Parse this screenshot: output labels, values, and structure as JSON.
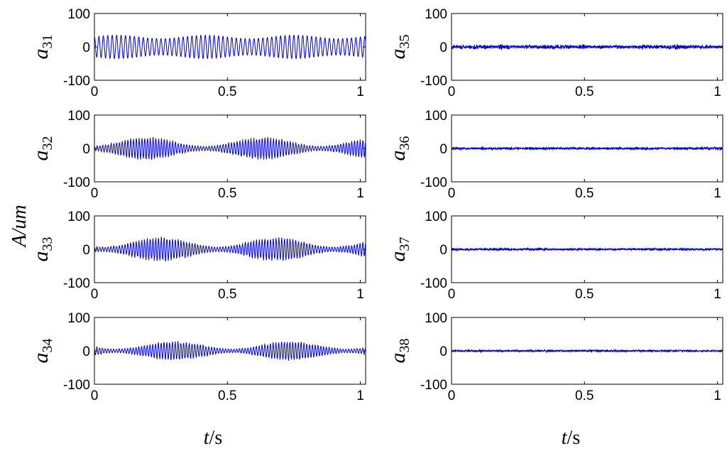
{
  "figure": {
    "ylabel_italic": "A/um",
    "xlabel_left_italic": "t",
    "xlabel_left_rest": "/s",
    "xlabel_right_italic": "t",
    "xlabel_right_rest": "/s"
  },
  "chart_data": {
    "type": "line",
    "line_color": "#0000CC",
    "x_ticks": [
      "0",
      "0.5",
      "1"
    ],
    "y_ticks": [
      "100",
      "0",
      "-100"
    ],
    "xlim": [
      0,
      1.02
    ],
    "ylim": [
      -100,
      100
    ],
    "grid": false,
    "panels": [
      {
        "label_main": "a",
        "label_sub": "31",
        "amplitude": 35,
        "cycles": 60,
        "style": "periodic"
      },
      {
        "label_main": "a",
        "label_sub": "32",
        "amplitude": 35,
        "cycles": 95,
        "style": "modulated"
      },
      {
        "label_main": "a",
        "label_sub": "33",
        "amplitude": 38,
        "cycles": 95,
        "style": "modulated"
      },
      {
        "label_main": "a",
        "label_sub": "34",
        "amplitude": 30,
        "cycles": 95,
        "style": "modulated"
      },
      {
        "label_main": "a",
        "label_sub": "35",
        "amplitude": 16,
        "cycles": 120,
        "style": "bursty"
      },
      {
        "label_main": "a",
        "label_sub": "36",
        "amplitude": 10,
        "cycles": 120,
        "style": "bursty"
      },
      {
        "label_main": "a",
        "label_sub": "37",
        "amplitude": 9,
        "cycles": 120,
        "style": "bursty"
      },
      {
        "label_main": "a",
        "label_sub": "38",
        "amplitude": 8,
        "cycles": 120,
        "style": "bursty"
      }
    ]
  }
}
